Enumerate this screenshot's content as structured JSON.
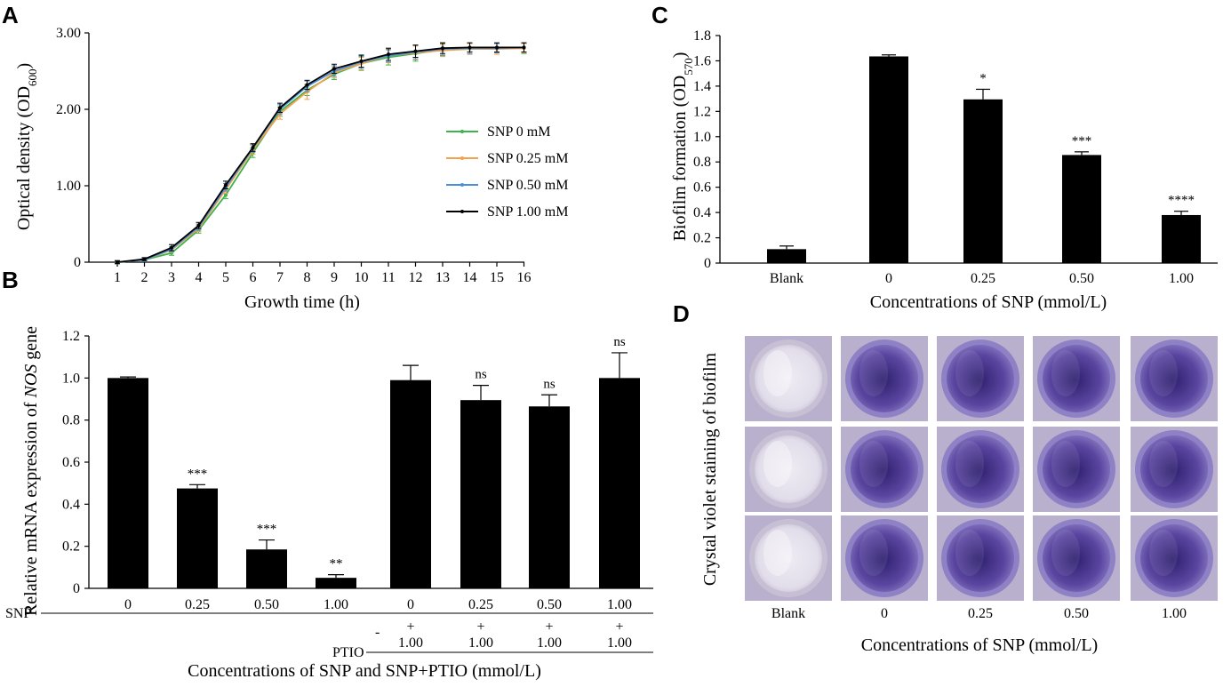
{
  "figure": {
    "panels": [
      {
        "id": "A",
        "chart_data": {
          "type": "line",
          "x": [
            1,
            2,
            3,
            4,
            5,
            6,
            7,
            8,
            9,
            10,
            11,
            12,
            13,
            14,
            15,
            16
          ],
          "xlabel": "Growth time (h)",
          "ylabel": "Optical density (OD",
          "ylabel_sub": "600",
          "ylabel_end": ")",
          "ylim": [
            0,
            3
          ],
          "yticks": [
            "0",
            "1.00",
            "2.00",
            "3.00"
          ],
          "xticks": [
            "1",
            "2",
            "3",
            "4",
            "5",
            "6",
            "7",
            "8",
            "9",
            "10",
            "11",
            "12",
            "13",
            "14",
            "15",
            "16"
          ],
          "legend_position": "right",
          "series": [
            {
              "name": "SNP  0 mM",
              "color": "#3cb44b",
              "values": [
                0.0,
                0.03,
                0.12,
                0.42,
                0.88,
                1.43,
                1.97,
                2.25,
                2.46,
                2.6,
                2.68,
                2.73,
                2.78,
                2.79,
                2.8,
                2.8
              ],
              "err": [
                0.02,
                0.02,
                0.03,
                0.04,
                0.05,
                0.06,
                0.06,
                0.07,
                0.07,
                0.09,
                0.1,
                0.1,
                0.08,
                0.07,
                0.06,
                0.07
              ]
            },
            {
              "name": "SNP  0.25 mM",
              "color": "#f5a04a",
              "values": [
                0.0,
                0.03,
                0.16,
                0.44,
                0.95,
                1.47,
                1.94,
                2.23,
                2.48,
                2.6,
                2.7,
                2.74,
                2.77,
                2.79,
                2.79,
                2.8
              ],
              "err": [
                0.02,
                0.02,
                0.03,
                0.04,
                0.05,
                0.06,
                0.07,
                0.1,
                0.07,
                0.08,
                0.09,
                0.09,
                0.08,
                0.07,
                0.07,
                0.06
              ]
            },
            {
              "name": "SNP  0.50 mM",
              "color": "#4a90d9",
              "values": [
                0.0,
                0.03,
                0.17,
                0.46,
                0.98,
                1.49,
                2.0,
                2.3,
                2.5,
                2.62,
                2.7,
                2.75,
                2.79,
                2.8,
                2.8,
                2.81
              ],
              "err": [
                0.02,
                0.02,
                0.03,
                0.04,
                0.05,
                0.05,
                0.06,
                0.07,
                0.07,
                0.08,
                0.08,
                0.09,
                0.08,
                0.07,
                0.06,
                0.06
              ]
            },
            {
              "name": "SNP  1.00 mM",
              "color": "#000000",
              "values": [
                0.0,
                0.04,
                0.19,
                0.48,
                1.01,
                1.5,
                2.02,
                2.32,
                2.53,
                2.63,
                2.72,
                2.76,
                2.8,
                2.81,
                2.81,
                2.81
              ],
              "err": [
                0.02,
                0.02,
                0.04,
                0.04,
                0.05,
                0.05,
                0.06,
                0.06,
                0.06,
                0.08,
                0.08,
                0.08,
                0.07,
                0.06,
                0.06,
                0.06
              ]
            }
          ]
        }
      },
      {
        "id": "B",
        "chart_data": {
          "type": "bar",
          "categories": [
            "0",
            "0.25",
            "0.50",
            "1.00",
            "0",
            "0.25",
            "0.50",
            "1.00"
          ],
          "values": [
            1.0,
            0.475,
            0.185,
            0.05,
            0.99,
            0.895,
            0.865,
            1.0
          ],
          "err": [
            0.005,
            0.018,
            0.045,
            0.015,
            0.07,
            0.07,
            0.055,
            0.12
          ],
          "significance": [
            "",
            "***",
            "***",
            "**",
            "",
            "ns",
            "ns",
            "ns"
          ],
          "ptio": [
            "",
            "",
            "",
            "",
            "+",
            "+",
            "+",
            "+"
          ],
          "ptio_value": [
            "",
            "",
            "",
            "",
            "1.00",
            "1.00",
            "1.00",
            "1.00"
          ],
          "row_label_snp": "SNP",
          "row_label_ptio": "PTIO",
          "dash": "-",
          "ylim": [
            0,
            1.2
          ],
          "yticks": [
            "0",
            "0.2",
            "0.4",
            "0.6",
            "0.8",
            "1.0",
            "1.2"
          ],
          "ylabel_pre": "Relative mRNA expression of ",
          "ylabel_gene": "NOS",
          "ylabel_post": " gene",
          "xlabel": "Concentrations of SNP and SNP+PTIO (mmol/L)"
        }
      },
      {
        "id": "C",
        "chart_data": {
          "type": "bar",
          "categories": [
            "Blank",
            "0",
            "0.25",
            "0.50",
            "1.00"
          ],
          "values": [
            0.11,
            1.635,
            1.295,
            0.855,
            0.38
          ],
          "err": [
            0.025,
            0.012,
            0.08,
            0.025,
            0.03
          ],
          "significance": [
            "",
            "",
            "*",
            "***",
            "****"
          ],
          "ylim": [
            0,
            1.8
          ],
          "yticks": [
            "0",
            "0.2",
            "0.4",
            "0.6",
            "0.8",
            "1.0",
            "1.2",
            "1.4",
            "1.6",
            "1.8"
          ],
          "ylabel": "Biofilm formation (OD",
          "ylabel_sub": "570",
          "ylabel_end": ")",
          "xlabel": "Concentrations of SNP (mmol/L)"
        }
      },
      {
        "id": "D",
        "ylabel": "Crystal violet staining of biofilm",
        "xlabel": "Concentrations of SNP (mmol/L)",
        "columns": [
          "Blank",
          "0",
          "0.25",
          "0.50",
          "1.00"
        ],
        "rows": 3,
        "colors": {
          "blank_fill": "#e2ddea",
          "blank_ring": "#c9c2d6",
          "stain_dark": "#2e1f6e",
          "stain_mid": "#5a46a0",
          "stain_light": "#8b7cc4",
          "bg": "#b8b0cc"
        }
      }
    ]
  }
}
